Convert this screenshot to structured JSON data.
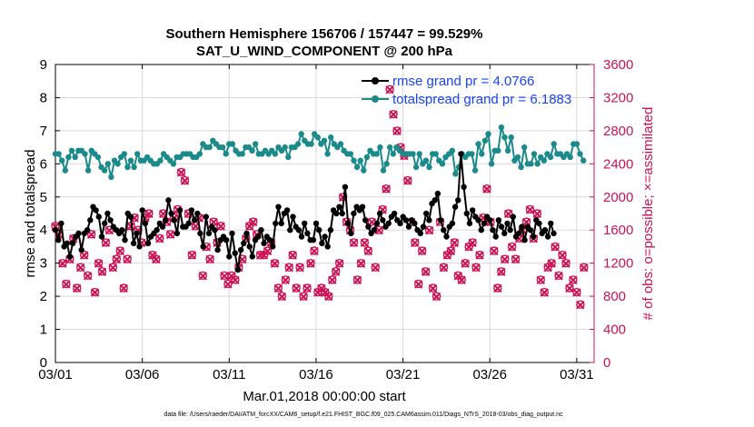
{
  "chart_data": {
    "type": "line",
    "title": "Southern Hemisphere 156706 / 157447 = 99.529%",
    "subtitle": "SAT_U_WIND_COMPONENT @ 200 hPa",
    "xlabel": "Mar.01,2018 00:00:00 start",
    "ylabel": "rmse and totalspread",
    "ylabel_right": "# of obs: o=possible; ×=assimilated",
    "xlim": [
      1,
      32
    ],
    "ylim": [
      0,
      9
    ],
    "ylim_right": [
      0,
      3600
    ],
    "x_ticks": [
      1,
      6,
      11,
      16,
      21,
      26,
      31
    ],
    "x_tick_labels": [
      "03/01",
      "03/06",
      "03/11",
      "03/16",
      "03/21",
      "03/26",
      "03/31"
    ],
    "y_ticks": [
      0,
      1,
      2,
      3,
      4,
      5,
      6,
      7,
      8,
      9
    ],
    "y_tick_labels": [
      "0",
      "1",
      "2",
      "3",
      "4",
      "5",
      "6",
      "7",
      "8",
      "9"
    ],
    "y_right_ticks": [
      0,
      400,
      800,
      1200,
      1600,
      2000,
      2400,
      2800,
      3200,
      3600
    ],
    "y_right_tick_labels": [
      "0",
      "400",
      "800",
      "1200",
      "1600",
      "2000",
      "2400",
      "2800",
      "3200",
      "3600"
    ],
    "legend_position": "top-right",
    "series": [
      {
        "name": "rmse grand pr = 4.0766",
        "color": "#000000",
        "marker": "circle",
        "axis": "left",
        "values": [
          4.0,
          3.7,
          4.2,
          3.5,
          3.6,
          3.2,
          3.6,
          3.8,
          3.9,
          3.4,
          3.9,
          4.0,
          4.3,
          4.7,
          4.6,
          4.4,
          3.8,
          4.2,
          4.5,
          4.3,
          4.1,
          4.0,
          3.9,
          4.0,
          3.7,
          4.5,
          4.4,
          3.6,
          3.9,
          3.5,
          4.6,
          4.2,
          3.6,
          3.8,
          3.9,
          4.0,
          4.2,
          4.1,
          4.3,
          4.9,
          4.5,
          4.3,
          3.9,
          4.6,
          4.1,
          4.1,
          4.2,
          4.6,
          4.3,
          4.5,
          3.9,
          3.5,
          4.4,
          3.9,
          4.1,
          4.0,
          3.4,
          3.7,
          3.8,
          3.7,
          3.2,
          3.9,
          3.3,
          2.8,
          3.4,
          3.6,
          3.9,
          3.5,
          3.2,
          3.7,
          3.8,
          4.0,
          3.6,
          3.8,
          3.7,
          3.5,
          4.2,
          4.7,
          4.2,
          4.5,
          4.6,
          4.0,
          4.4,
          4.1,
          4.0,
          3.8,
          4.2,
          3.9,
          3.7,
          3.7,
          4.2,
          4.0,
          3.6,
          3.8,
          3.5,
          4.0,
          4.6,
          4.5,
          4.7,
          4.5,
          5.3,
          4.2,
          3.9,
          4.5,
          4.7,
          4.6,
          4.7,
          4.3,
          4.1,
          3.9,
          4.0,
          4.2,
          4.5,
          4.3,
          4.1,
          4.2,
          4.4,
          4.5,
          4.3,
          4.2,
          4.4,
          4.3,
          4.1,
          4.3,
          4.2,
          4.0,
          3.9,
          4.1,
          4.5,
          4.3,
          4.8,
          4.9,
          5.1,
          4.3,
          4.0,
          3.8,
          4.1,
          4.2,
          4.7,
          4.9,
          6.3,
          5.3,
          4.5,
          4.2,
          4.6,
          4.4,
          4.3,
          4.0,
          4.2,
          4.4,
          4.3,
          4.0,
          3.8,
          4.3,
          4.1,
          3.9,
          4.2,
          4.0,
          4.4,
          3.8,
          3.9,
          4.1,
          3.7,
          4.1,
          4.0,
          3.8,
          4.3,
          4.2,
          3.9,
          4.0,
          3.8,
          4.2,
          3.9
        ],
        "x_start": 1.0,
        "x_step": 0.1667
      },
      {
        "name": "totalspread grand pr = 6.1883",
        "color": "#1a8a8a",
        "marker": "circle",
        "axis": "left",
        "values": [
          6.3,
          6.3,
          6.1,
          5.8,
          6.2,
          6.4,
          6.2,
          6.4,
          6.4,
          6.3,
          5.8,
          6.4,
          6.3,
          6.2,
          5.9,
          5.8,
          6.0,
          5.6,
          6.1,
          6.0,
          6.2,
          6.3,
          5.9,
          6.1,
          5.9,
          6.3,
          6.1,
          6.1,
          6.2,
          6.1,
          6.0,
          6.0,
          6.1,
          6.3,
          6.2,
          6.1,
          6.0,
          6.2,
          6.2,
          6.3,
          6.3,
          6.3,
          6.2,
          6.2,
          6.3,
          6.6,
          6.5,
          6.5,
          6.7,
          6.6,
          6.5,
          6.5,
          6.3,
          6.6,
          6.6,
          6.4,
          6.3,
          6.3,
          6.5,
          6.5,
          6.4,
          6.6,
          6.3,
          6.3,
          6.4,
          6.3,
          6.4,
          6.3,
          6.5,
          6.4,
          6.5,
          6.2,
          6.5,
          6.5,
          6.6,
          6.9,
          6.7,
          6.6,
          6.6,
          6.9,
          6.8,
          6.6,
          6.7,
          6.3,
          6.8,
          6.6,
          6.5,
          6.6,
          6.4,
          6.3,
          6.3,
          6.1,
          5.9,
          6.1,
          5.8,
          6.2,
          6.4,
          6.3,
          6.3,
          6.5,
          5.8,
          6.0,
          6.5,
          6.3,
          6.5,
          6.4,
          6.3,
          6.3,
          6.3,
          6.3,
          5.9,
          6.3,
          6.0,
          6.1,
          5.9,
          6.3,
          6.3,
          6.1,
          6.0,
          6.2,
          6.3,
          6.4,
          5.7,
          5.9,
          6.3,
          6.2,
          6.3,
          6.3,
          5.8,
          6.6,
          6.3,
          6.7,
          6.9,
          6.0,
          6.4,
          6.4,
          7.1,
          6.8,
          6.4,
          6.8,
          6.1,
          6.2,
          5.9,
          6.5,
          6.0,
          6.0,
          6.3,
          6.0,
          6.2,
          6.1,
          6.3,
          6.2,
          6.6,
          6.3,
          6.3,
          6.2,
          6.3,
          6.2,
          6.6,
          6.6,
          6.3,
          6.1
        ],
        "x_start": 1.0,
        "x_step": 0.1887
      },
      {
        "name": "possible obs",
        "color": "#cc1155",
        "marker": "circle-open",
        "axis": "right",
        "values": [
          1650,
          1550,
          1200,
          950,
          1250,
          1500,
          900,
          1150,
          1300,
          1050,
          1550,
          850,
          1200,
          1100,
          1450,
          1600,
          1150,
          1250,
          1350,
          900,
          1250,
          1650,
          1750,
          1600,
          1450,
          1750,
          1800,
          1300,
          1250,
          1500,
          1800,
          1700,
          1550,
          1750,
          1850,
          2300,
          2200,
          1800,
          1300,
          1650,
          1750,
          1050,
          1400,
          1250,
          1700,
          1450,
          1650,
          1050,
          950,
          1050,
          1000,
          1150,
          1250,
          1500,
          1650,
          1700,
          1550,
          1300,
          1300,
          1350,
          1450,
          1200,
          900,
          800,
          1000,
          1150,
          1300,
          900,
          1150,
          800,
          900,
          1200,
          1350,
          850,
          900,
          850,
          800,
          1000,
          1100,
          1200,
          2000,
          1700,
          1600,
          1450,
          1000,
          1200,
          1450,
          1350,
          1700,
          1150,
          1600,
          1850,
          2100,
          3300,
          3000,
          2800,
          2600,
          2500,
          2200,
          1700,
          1450,
          950,
          1350,
          1100,
          1600,
          900,
          800,
          1700,
          1150,
          1300,
          1350,
          1450,
          1050,
          1000,
          1200,
          1400,
          1450,
          1150,
          1300,
          1750,
          2100,
          1700,
          1350,
          900,
          1100,
          1250,
          1800,
          1400,
          1250,
          1500,
          1600,
          1700,
          1850,
          1500,
          1800,
          1000,
          850,
          1150,
          1200,
          1400,
          1050,
          1300,
          1200,
          900,
          1000,
          850,
          700,
          1150
        ],
        "x_start": 1.0,
        "x_step": 0.2069
      },
      {
        "name": "assimilated obs",
        "color": "#cc1155",
        "marker": "x",
        "axis": "right",
        "values": [
          1640,
          1545,
          1195,
          945,
          1245,
          1495,
          895,
          1145,
          1295,
          1045,
          1545,
          845,
          1195,
          1095,
          1445,
          1595,
          1145,
          1245,
          1345,
          895,
          1245,
          1645,
          1745,
          1595,
          1445,
          1745,
          1795,
          1295,
          1245,
          1495,
          1795,
          1695,
          1545,
          1745,
          1845,
          2295,
          2195,
          1795,
          1295,
          1645,
          1745,
          1045,
          1395,
          1245,
          1695,
          1445,
          1645,
          1045,
          945,
          1045,
          995,
          1145,
          1245,
          1495,
          1645,
          1695,
          1545,
          1295,
          1295,
          1345,
          1445,
          1195,
          895,
          795,
          995,
          1145,
          1295,
          895,
          1145,
          795,
          895,
          1195,
          1345,
          845,
          895,
          845,
          795,
          995,
          1095,
          1195,
          1995,
          1695,
          1595,
          1445,
          995,
          1195,
          1445,
          1345,
          1695,
          1145,
          1595,
          1845,
          2095,
          3295,
          2995,
          2795,
          2595,
          2495,
          2195,
          1695,
          1445,
          945,
          1345,
          1095,
          1595,
          895,
          795,
          1695,
          1145,
          1295,
          1345,
          1445,
          1045,
          995,
          1195,
          1395,
          1445,
          1145,
          1295,
          1745,
          2095,
          1695,
          1345,
          895,
          1095,
          1245,
          1795,
          1395,
          1245,
          1495,
          1595,
          1695,
          1845,
          1495,
          1795,
          995,
          845,
          1145,
          1195,
          1395,
          1045,
          1295,
          1195,
          895,
          995,
          845,
          695,
          1145
        ],
        "x_start": 1.0,
        "x_step": 0.2069
      }
    ]
  },
  "footer": {
    "data_file": "data file: /Users/raeder/DAI/ATM_forcXX/CAM6_setup/f.e21.FHIST_BGC.f09_025.CAM6assim.011/Diags_NTrS_2018-03/obs_diag_output.nc"
  },
  "colors": {
    "rmse": "#000000",
    "spread": "#1a8a8a",
    "obs": "#cc1155",
    "legend_text": "#1a44ee"
  }
}
